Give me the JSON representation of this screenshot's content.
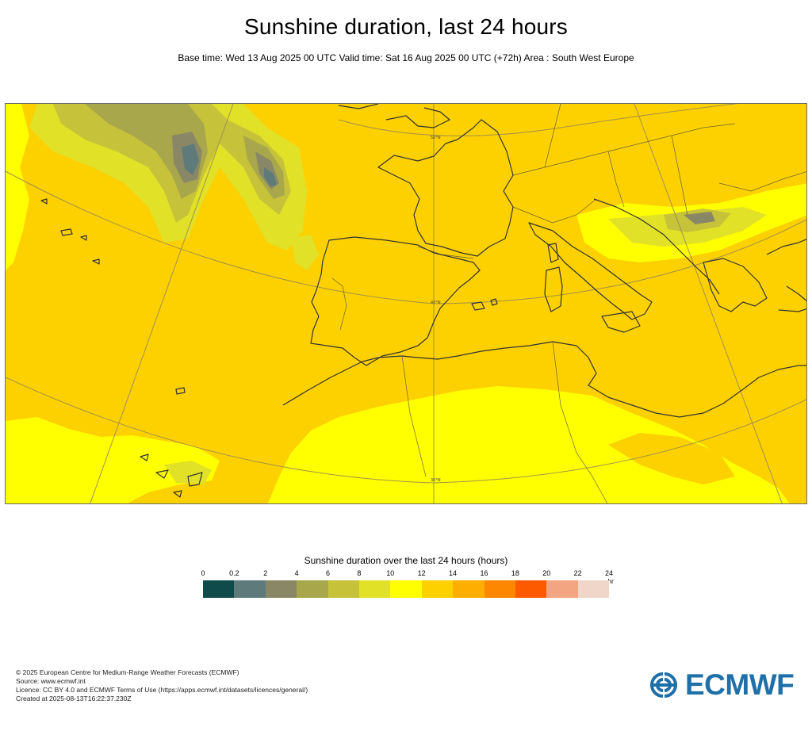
{
  "header": {
    "title": "Sunshine duration, last 24 hours",
    "subtitle": "Base time: Wed 13 Aug 2025 00 UTC Valid time: Sat 16 Aug 2025 00 UTC (+72h) Area : South West Europe"
  },
  "map": {
    "parallel_labels": [
      "50°N",
      "40°N",
      "30°N"
    ],
    "field_colors": {
      "band_0_0.2": "#0f4b4b",
      "band_0.2_2": "#5f7a7a",
      "band_2_4": "#8a8766",
      "band_4_6": "#a9a74b",
      "band_6_8": "#c6c23a",
      "band_8_10": "#e1e128",
      "band_10_12": "#ffff00",
      "band_12_14": "#fdd000",
      "band_14_16": "#fdae00",
      "band_16_18": "#fd8800",
      "band_18_20": "#fd5a00",
      "band_20_22": "#f3a480",
      "band_22_24": "#efd6c8"
    },
    "coastline_color": "#333333",
    "graticule_color": "#9a8a50"
  },
  "legend": {
    "title": "Sunshine duration over the last 24 hours (hours)",
    "unit": "-hr",
    "ticks": [
      "0",
      "0.2",
      "2",
      "4",
      "6",
      "8",
      "10",
      "12",
      "14",
      "16",
      "18",
      "20",
      "22",
      "24"
    ],
    "colors": [
      "#0f4b4b",
      "#5f7a7a",
      "#8a8766",
      "#a9a74b",
      "#c6c23a",
      "#e1e128",
      "#ffff00",
      "#fdd000",
      "#fdae00",
      "#fd8800",
      "#fd5a00",
      "#f3a480",
      "#efd6c8"
    ]
  },
  "footer": {
    "line1": "© 2025 European Centre for Medium-Range Weather Forecasts (ECMWF)",
    "line2": "Source: www.ecmwf.int",
    "line3": "Licence: CC BY 4.0 and ECMWF Terms of Use (https://apps.ecmwf.int/datasets/licences/general/)",
    "line4": "Created at 2025-08-13T16:22:37.230Z"
  },
  "logo": {
    "text": "ECMWF",
    "color": "#1f6fa8"
  }
}
